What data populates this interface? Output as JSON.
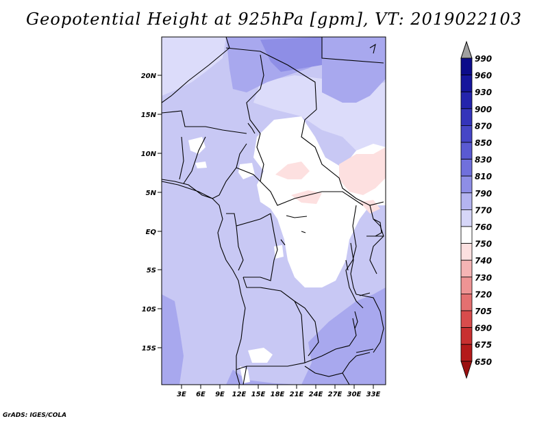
{
  "title": "Geopotential Height at 925hPa [gpm], VT: 2019022103",
  "footer": "GrADS: IGES/COLA",
  "map": {
    "lat_labels": [
      "20N",
      "15N",
      "10N",
      "5N",
      "EQ",
      "5S",
      "10S",
      "15S"
    ],
    "lon_labels": [
      "3E",
      "6E",
      "9E",
      "12E",
      "15E",
      "18E",
      "21E",
      "24E",
      "27E",
      "30E",
      "33E"
    ]
  },
  "colorbar": {
    "levels": [
      "990",
      "960",
      "930",
      "900",
      "870",
      "850",
      "830",
      "810",
      "790",
      "770",
      "760",
      "750",
      "740",
      "730",
      "720",
      "705",
      "690",
      "675",
      "650"
    ],
    "colors": [
      "#0c0c8a",
      "#16169c",
      "#2424ac",
      "#3434ba",
      "#4646c6",
      "#5a5ad2",
      "#7070dc",
      "#8e8ee6",
      "#b4b4f0",
      "#d6d6f8",
      "#ffffff",
      "#fce0e0",
      "#f5b4b4",
      "#ee9494",
      "#e47070",
      "#d84c4c",
      "#c83030",
      "#b41a1a",
      "#9a1010"
    ],
    "top_arrow_color": "#a0a0a0"
  },
  "colors": {
    "base_fill": "#c8c8f4",
    "light_fill": "#dcdcfa",
    "darker_fill": "#a8a8ee",
    "darkest_fill": "#8e8ee6",
    "white_fill": "#ffffff",
    "pink_fill": "#fde0e0",
    "border": "#000000"
  }
}
